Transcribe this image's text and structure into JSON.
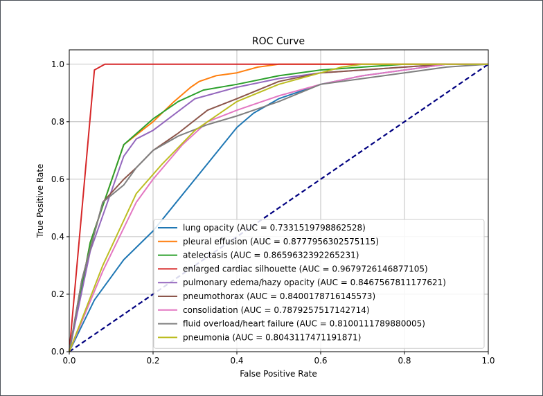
{
  "chart_data": {
    "type": "line",
    "title": "ROC Curve",
    "xlabel": "False Positive Rate",
    "ylabel": "True Positive Rate",
    "xlim": [
      0.0,
      1.0
    ],
    "ylim": [
      0.0,
      1.0
    ],
    "xticks": [
      "0.0",
      "0.2",
      "0.4",
      "0.6",
      "0.8",
      "1.0"
    ],
    "yticks": [
      "0.0",
      "0.2",
      "0.4",
      "0.6",
      "0.8",
      "1.0"
    ],
    "grid": true,
    "legend_position": "lower right",
    "reference_line": {
      "x": [
        0,
        1
      ],
      "y": [
        0,
        1
      ],
      "color": "#000080",
      "style": "dashed"
    },
    "series": [
      {
        "name": "lung opacity (AUC = 0.7331519798862528)",
        "color": "#1f77b4",
        "x": [
          0,
          0.06,
          0.13,
          0.2,
          0.3,
          0.4,
          0.44,
          0.5,
          0.6,
          0.7,
          0.8,
          0.9,
          1.0
        ],
        "y": [
          0,
          0.18,
          0.32,
          0.42,
          0.6,
          0.78,
          0.83,
          0.88,
          0.93,
          0.96,
          0.98,
          1.0,
          1.0
        ]
      },
      {
        "name": "pleural effusion (AUC = 0.8777956302575115)",
        "color": "#ff7f0e",
        "x": [
          0,
          0.05,
          0.13,
          0.2,
          0.25,
          0.29,
          0.31,
          0.35,
          0.4,
          0.45,
          0.5,
          0.6,
          0.8,
          1.0
        ],
        "y": [
          0,
          0.38,
          0.72,
          0.8,
          0.87,
          0.92,
          0.94,
          0.96,
          0.97,
          0.99,
          1.0,
          1.0,
          1.0,
          1.0
        ]
      },
      {
        "name": "atelectasis (AUC = 0.8659632392265231)",
        "color": "#2ca02c",
        "x": [
          0,
          0.05,
          0.13,
          0.2,
          0.26,
          0.32,
          0.4,
          0.5,
          0.6,
          0.7,
          0.8,
          1.0
        ],
        "y": [
          0,
          0.38,
          0.72,
          0.81,
          0.87,
          0.91,
          0.93,
          0.96,
          0.98,
          0.99,
          1.0,
          1.0
        ]
      },
      {
        "name": "enlarged cardiac silhouette (AUC = 0.9679726146877105)",
        "color": "#d62728",
        "x": [
          0,
          0.06,
          0.085,
          0.2,
          0.4,
          0.6,
          0.8,
          1.0
        ],
        "y": [
          0,
          0.98,
          1.0,
          1.0,
          1.0,
          1.0,
          1.0,
          1.0
        ]
      },
      {
        "name": "pulmonary edema/hazy opacity (AUC = 0.8467567811177621)",
        "color": "#9467bd",
        "x": [
          0,
          0.05,
          0.13,
          0.16,
          0.2,
          0.3,
          0.4,
          0.5,
          0.6,
          0.7,
          0.8,
          0.9,
          1.0
        ],
        "y": [
          0,
          0.35,
          0.68,
          0.74,
          0.77,
          0.88,
          0.92,
          0.95,
          0.97,
          0.98,
          0.99,
          1.0,
          1.0
        ]
      },
      {
        "name": "pneumothorax (AUC = 0.8400178716145573)",
        "color": "#8c564b",
        "x": [
          0,
          0.03,
          0.08,
          0.13,
          0.16,
          0.2,
          0.26,
          0.33,
          0.4,
          0.5,
          0.6,
          0.7,
          0.8,
          0.9,
          1.0
        ],
        "y": [
          0,
          0.25,
          0.52,
          0.6,
          0.64,
          0.7,
          0.76,
          0.84,
          0.88,
          0.94,
          0.97,
          0.98,
          0.99,
          1.0,
          1.0
        ]
      },
      {
        "name": "consolidation (AUC = 0.7879257517142714)",
        "color": "#e377c2",
        "x": [
          0,
          0.08,
          0.16,
          0.2,
          0.27,
          0.33,
          0.4,
          0.5,
          0.6,
          0.7,
          0.8,
          0.9,
          1.0
        ],
        "y": [
          0,
          0.28,
          0.52,
          0.6,
          0.72,
          0.8,
          0.84,
          0.89,
          0.93,
          0.96,
          0.98,
          1.0,
          1.0
        ]
      },
      {
        "name": "fluid overload/heart failure (AUC = 0.8100111789880005)",
        "color": "#7f7f7f",
        "x": [
          0,
          0.03,
          0.08,
          0.13,
          0.16,
          0.2,
          0.26,
          0.33,
          0.4,
          0.5,
          0.6,
          0.7,
          0.8,
          0.9,
          1.0
        ],
        "y": [
          0,
          0.25,
          0.52,
          0.58,
          0.64,
          0.7,
          0.75,
          0.79,
          0.82,
          0.87,
          0.93,
          0.95,
          0.97,
          0.99,
          1.0
        ]
      },
      {
        "name": "pneumonia (AUC = 0.8043117471191871)",
        "color": "#bcbd22",
        "x": [
          0,
          0.08,
          0.16,
          0.22,
          0.3,
          0.4,
          0.5,
          0.6,
          0.65,
          0.7,
          0.8,
          0.9,
          1.0
        ],
        "y": [
          0,
          0.3,
          0.55,
          0.65,
          0.77,
          0.87,
          0.93,
          0.97,
          0.99,
          1.0,
          1.0,
          1.0,
          1.0
        ]
      }
    ]
  }
}
